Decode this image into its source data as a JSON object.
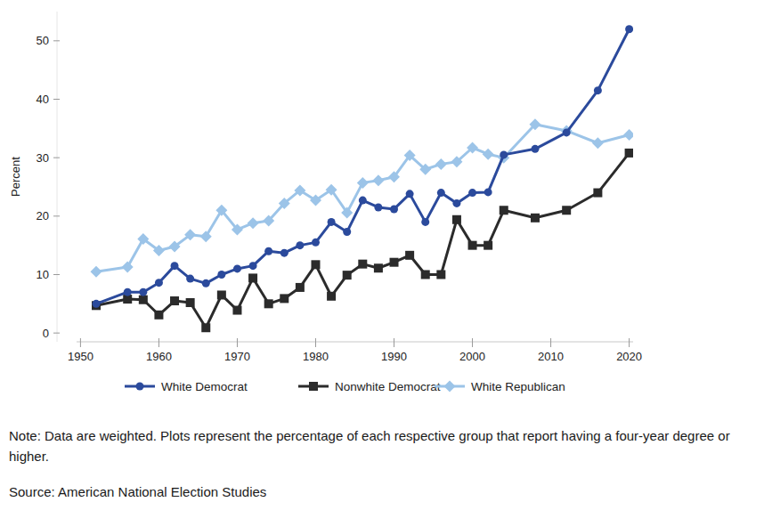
{
  "chart_data": {
    "type": "line",
    "y_label": "Percent",
    "note": "Note: Data are weighted. Plots represent the percentage of each respective group that report having a four-year degree or higher.",
    "source": "Source: American National Election Studies",
    "x": [
      1952,
      1956,
      1958,
      1960,
      1962,
      1964,
      1966,
      1968,
      1970,
      1972,
      1974,
      1976,
      1978,
      1980,
      1982,
      1984,
      1986,
      1988,
      1990,
      1992,
      1994,
      1996,
      1998,
      2000,
      2002,
      2004,
      2008,
      2012,
      2016,
      2020
    ],
    "xlim": [
      1949.5,
      2020.5
    ],
    "xticks": [
      1950,
      1960,
      1970,
      1980,
      1990,
      2000,
      2010,
      2020
    ],
    "ylim": [
      -1.5,
      55
    ],
    "yticks": [
      0,
      10,
      20,
      30,
      40,
      50
    ],
    "legend": "bottom",
    "series": [
      {
        "name": "White Democrat",
        "color": "#2b4a9c",
        "marker": "circle",
        "values": [
          5.0,
          7.0,
          7.0,
          8.6,
          11.5,
          9.3,
          8.5,
          10.0,
          11.0,
          11.5,
          14.0,
          13.7,
          15.0,
          15.5,
          19.0,
          17.3,
          22.7,
          21.5,
          21.2,
          23.8,
          19.0,
          24.0,
          22.2,
          24.0,
          24.1,
          30.5,
          31.5,
          34.3,
          41.5,
          52.0
        ]
      },
      {
        "name": "Nonwhite Democrat",
        "color": "#2b2b2b",
        "marker": "square",
        "values": [
          4.7,
          5.8,
          5.7,
          3.1,
          5.5,
          5.2,
          0.9,
          6.5,
          3.9,
          9.4,
          5.0,
          5.9,
          7.8,
          11.7,
          6.3,
          9.9,
          11.8,
          11.1,
          12.1,
          13.3,
          10.0,
          10.0,
          19.4,
          15.0,
          15.0,
          21.0,
          19.7,
          21.0,
          24.0,
          30.8
        ]
      },
      {
        "name": "White Republican",
        "color": "#9cc4e8",
        "marker": "diamond",
        "values": [
          10.5,
          11.3,
          16.1,
          14.1,
          14.8,
          16.8,
          16.5,
          21.0,
          17.7,
          18.8,
          19.2,
          22.2,
          24.4,
          22.7,
          24.5,
          20.6,
          25.7,
          26.1,
          26.7,
          30.4,
          28.0,
          28.9,
          29.3,
          31.7,
          30.6,
          30.0,
          35.7,
          34.6,
          32.5,
          33.9
        ]
      }
    ]
  }
}
